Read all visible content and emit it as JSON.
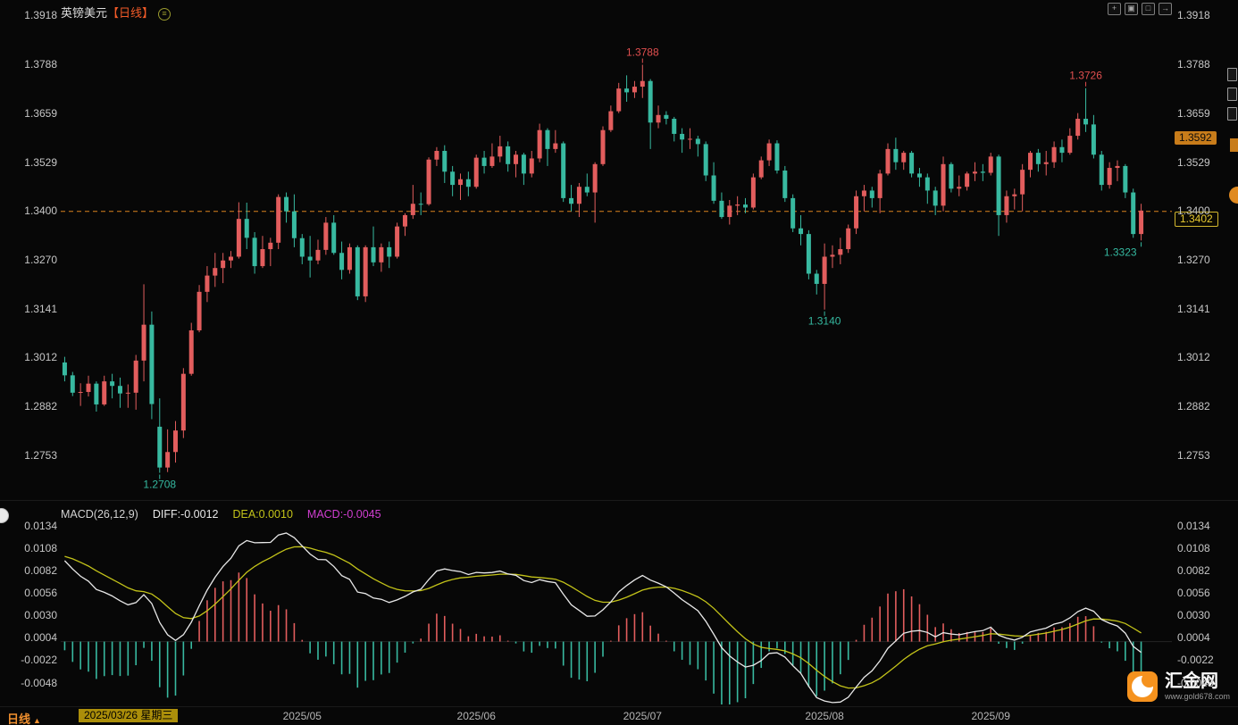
{
  "window": {
    "symbol": "英镑美元",
    "period_tag": "【日线】"
  },
  "icons": {
    "chart_settings": "≡",
    "period_caret": "▲",
    "win_icons": [
      "+",
      "▣",
      "□",
      "→"
    ]
  },
  "price_panel": {
    "ticks": [
      {
        "label": "1.3918",
        "value": 1.3918
      },
      {
        "label": "1.3788",
        "value": 1.3788
      },
      {
        "label": "1.3659",
        "value": 1.3659
      },
      {
        "label": "1.3529",
        "value": 1.3529
      },
      {
        "label": "1.3400",
        "value": 1.34
      },
      {
        "label": "1.3270",
        "value": 1.327
      },
      {
        "label": "1.3141",
        "value": 1.3141
      },
      {
        "label": "1.3012",
        "value": 1.3012
      },
      {
        "label": "1.2882",
        "value": 1.2882
      },
      {
        "label": "1.2753",
        "value": 1.2753
      }
    ],
    "ref_line": {
      "value": 1.34,
      "color": "#d9821e"
    },
    "tags": {
      "upper": {
        "text": "1.3592",
        "value": 1.3592
      },
      "current": {
        "text": "1.3402",
        "value": 1.3402
      }
    },
    "annotations": [
      {
        "text": "1.3788",
        "date": "2025-07-01",
        "value": 1.3788,
        "side": "high"
      },
      {
        "text": "1.3726",
        "date": "2025-09-17",
        "value": 1.3726,
        "side": "high"
      },
      {
        "text": "1.2708",
        "date": "2025-04-07",
        "value": 1.2708,
        "side": "low"
      },
      {
        "text": "1.3140",
        "date": "2025-08-01",
        "value": 1.314,
        "side": "low"
      },
      {
        "text": "1.3323",
        "date": "2025-09-26",
        "value": 1.3323,
        "side": "low",
        "align": "end"
      }
    ]
  },
  "macd_panel": {
    "header": {
      "name": "MACD(26,12,9)",
      "diff": "DIFF:-0.0012",
      "dea": "DEA:0.0010",
      "macd": "MACD:-0.0045"
    },
    "ticks": [
      {
        "label": "0.0134",
        "value": 0.0134
      },
      {
        "label": "0.0108",
        "value": 0.0108
      },
      {
        "label": "0.0082",
        "value": 0.0082
      },
      {
        "label": "0.0056",
        "value": 0.0056
      },
      {
        "label": "0.0030",
        "value": 0.003
      },
      {
        "label": "0.0004",
        "value": 0.0004
      },
      {
        "label": "-0.0022",
        "value": -0.0022
      },
      {
        "label": "-0.0048",
        "value": -0.0048
      }
    ]
  },
  "x_axis": {
    "months": [
      {
        "label": "2025/05",
        "key": "2025-05"
      },
      {
        "label": "2025/06",
        "key": "2025-06"
      },
      {
        "label": "2025/07",
        "key": "2025-07"
      },
      {
        "label": "2025/08",
        "key": "2025-08"
      },
      {
        "label": "2025/09",
        "key": "2025-09"
      }
    ]
  },
  "status_bar": {
    "period": "日线",
    "date": "2025/03/26 星期三"
  },
  "watermark": {
    "title": "汇金网",
    "url": "www.gold678.com"
  },
  "colors": {
    "up": "#e25d5d",
    "down": "#38b9a0",
    "diff_line": "#e8e8e8",
    "dea_line": "#c3c319",
    "annotation_high": "#e14f4f",
    "annotation_low": "#35b9a0",
    "accent": "#f08f2e"
  },
  "chart_data": {
    "type": "candlestick",
    "symbol": "英镑美元",
    "period": "日线",
    "indicator": "MACD(26,12,9)",
    "price_range": [
      1.2753,
      1.3918
    ],
    "macd_range": [
      -0.0048,
      0.0134
    ],
    "last": {
      "close": 1.3402,
      "diff": -0.0012,
      "dea": 0.001,
      "macd": -0.0045
    },
    "macd_seed": {
      "ema12": 1.2952,
      "ema26": 1.2852,
      "dea": 0.01
    },
    "ohlc_columns": [
      "date",
      "open",
      "high",
      "low",
      "close"
    ],
    "candles": [
      [
        "2025-03-20",
        1.3,
        1.3015,
        1.295,
        1.2966
      ],
      [
        "2025-03-21",
        1.2966,
        1.2975,
        1.2911,
        1.292
      ],
      [
        "2025-03-24",
        1.292,
        1.2945,
        1.2885,
        1.2922
      ],
      [
        "2025-03-25",
        1.2922,
        1.2965,
        1.291,
        1.2944
      ],
      [
        "2025-03-26",
        1.2944,
        1.295,
        1.287,
        1.2889
      ],
      [
        "2025-03-27",
        1.2889,
        1.2965,
        1.2885,
        1.295
      ],
      [
        "2025-03-28",
        1.295,
        1.297,
        1.2905,
        1.2938
      ],
      [
        "2025-03-31",
        1.2938,
        1.296,
        1.288,
        1.2918
      ],
      [
        "2025-04-01",
        1.2918,
        1.2942,
        1.288,
        1.292
      ],
      [
        "2025-04-02",
        1.292,
        1.302,
        1.2875,
        1.3005
      ],
      [
        "2025-04-03",
        1.3005,
        1.3207,
        1.295,
        1.31
      ],
      [
        "2025-04-04",
        1.31,
        1.3135,
        1.285,
        1.289
      ],
      [
        "2025-04-07",
        1.283,
        1.2905,
        1.2708,
        1.2722
      ],
      [
        "2025-04-08",
        1.2722,
        1.2823,
        1.271,
        1.2763
      ],
      [
        "2025-04-09",
        1.2763,
        1.2845,
        1.2735,
        1.282
      ],
      [
        "2025-04-10",
        1.282,
        1.2985,
        1.28,
        1.297
      ],
      [
        "2025-04-11",
        1.297,
        1.3105,
        1.2965,
        1.3085
      ],
      [
        "2025-04-14",
        1.3085,
        1.3205,
        1.308,
        1.3187
      ],
      [
        "2025-04-15",
        1.3187,
        1.3255,
        1.316,
        1.323
      ],
      [
        "2025-04-16",
        1.323,
        1.329,
        1.32,
        1.325
      ],
      [
        "2025-04-17",
        1.325,
        1.329,
        1.321,
        1.327
      ],
      [
        "2025-04-18",
        1.327,
        1.3295,
        1.325,
        1.328
      ],
      [
        "2025-04-21",
        1.328,
        1.3424,
        1.3275,
        1.338
      ],
      [
        "2025-04-22",
        1.338,
        1.3423,
        1.33,
        1.333
      ],
      [
        "2025-04-23",
        1.333,
        1.3345,
        1.3235,
        1.3255
      ],
      [
        "2025-04-24",
        1.3255,
        1.3335,
        1.325,
        1.33
      ],
      [
        "2025-04-25",
        1.33,
        1.333,
        1.3255,
        1.3317
      ],
      [
        "2025-04-28",
        1.3317,
        1.3445,
        1.33,
        1.3438
      ],
      [
        "2025-04-29",
        1.3438,
        1.345,
        1.337,
        1.34
      ],
      [
        "2025-04-30",
        1.34,
        1.3445,
        1.3305,
        1.3329
      ],
      [
        "2025-05-01",
        1.3329,
        1.334,
        1.326,
        1.328
      ],
      [
        "2025-05-02",
        1.328,
        1.3335,
        1.3225,
        1.327
      ],
      [
        "2025-05-05",
        1.327,
        1.3325,
        1.326,
        1.3298
      ],
      [
        "2025-05-06",
        1.3298,
        1.3385,
        1.3285,
        1.337
      ],
      [
        "2025-05-07",
        1.337,
        1.339,
        1.3285,
        1.329
      ],
      [
        "2025-05-08",
        1.329,
        1.332,
        1.322,
        1.3245
      ],
      [
        "2025-05-09",
        1.3245,
        1.3315,
        1.3235,
        1.3305
      ],
      [
        "2025-05-12",
        1.3305,
        1.331,
        1.3165,
        1.3175
      ],
      [
        "2025-05-13",
        1.3175,
        1.331,
        1.316,
        1.3305
      ],
      [
        "2025-05-14",
        1.3305,
        1.336,
        1.3255,
        1.3265
      ],
      [
        "2025-05-15",
        1.3265,
        1.3315,
        1.324,
        1.3305
      ],
      [
        "2025-05-16",
        1.3305,
        1.332,
        1.325,
        1.328
      ],
      [
        "2025-05-19",
        1.328,
        1.337,
        1.3275,
        1.336
      ],
      [
        "2025-05-20",
        1.336,
        1.3395,
        1.3335,
        1.339
      ],
      [
        "2025-05-21",
        1.339,
        1.347,
        1.338,
        1.342
      ],
      [
        "2025-05-22",
        1.342,
        1.345,
        1.339,
        1.3419
      ],
      [
        "2025-05-23",
        1.3419,
        1.3543,
        1.3415,
        1.3537
      ],
      [
        "2025-05-26",
        1.3537,
        1.357,
        1.352,
        1.356
      ],
      [
        "2025-05-27",
        1.356,
        1.3575,
        1.3475,
        1.3505
      ],
      [
        "2025-05-28",
        1.3505,
        1.352,
        1.344,
        1.347
      ],
      [
        "2025-05-29",
        1.347,
        1.35,
        1.343,
        1.3485
      ],
      [
        "2025-05-30",
        1.3485,
        1.3505,
        1.344,
        1.3465
      ],
      [
        "2025-06-02",
        1.3465,
        1.355,
        1.346,
        1.3542
      ],
      [
        "2025-06-03",
        1.3542,
        1.356,
        1.35,
        1.352
      ],
      [
        "2025-06-04",
        1.352,
        1.358,
        1.3515,
        1.3545
      ],
      [
        "2025-06-05",
        1.3545,
        1.36,
        1.353,
        1.3572
      ],
      [
        "2025-06-06",
        1.3572,
        1.3585,
        1.3505,
        1.3525
      ],
      [
        "2025-06-09",
        1.3525,
        1.356,
        1.349,
        1.355
      ],
      [
        "2025-06-10",
        1.355,
        1.3555,
        1.347,
        1.35
      ],
      [
        "2025-06-11",
        1.35,
        1.356,
        1.349,
        1.354
      ],
      [
        "2025-06-12",
        1.354,
        1.3632,
        1.353,
        1.3615
      ],
      [
        "2025-06-13",
        1.3615,
        1.362,
        1.352,
        1.3565
      ],
      [
        "2025-06-16",
        1.3565,
        1.3615,
        1.3555,
        1.358
      ],
      [
        "2025-06-17",
        1.358,
        1.3585,
        1.3425,
        1.3435
      ],
      [
        "2025-06-18",
        1.3435,
        1.347,
        1.34,
        1.342
      ],
      [
        "2025-06-19",
        1.342,
        1.3475,
        1.3385,
        1.3465
      ],
      [
        "2025-06-20",
        1.3465,
        1.35,
        1.344,
        1.345
      ],
      [
        "2025-06-23",
        1.345,
        1.353,
        1.337,
        1.3525
      ],
      [
        "2025-06-24",
        1.3525,
        1.3625,
        1.352,
        1.3615
      ],
      [
        "2025-06-25",
        1.3615,
        1.368,
        1.361,
        1.3665
      ],
      [
        "2025-06-26",
        1.3665,
        1.374,
        1.366,
        1.3725
      ],
      [
        "2025-06-27",
        1.3725,
        1.376,
        1.369,
        1.3715
      ],
      [
        "2025-06-30",
        1.3715,
        1.3745,
        1.37,
        1.373
      ],
      [
        "2025-07-01",
        1.373,
        1.3788,
        1.37,
        1.3745
      ],
      [
        "2025-07-02",
        1.3745,
        1.375,
        1.3565,
        1.3635
      ],
      [
        "2025-07-03",
        1.3635,
        1.368,
        1.362,
        1.3655
      ],
      [
        "2025-07-04",
        1.3655,
        1.3665,
        1.363,
        1.3645
      ],
      [
        "2025-07-07",
        1.3645,
        1.365,
        1.3585,
        1.3605
      ],
      [
        "2025-07-08",
        1.3605,
        1.362,
        1.3555,
        1.359
      ],
      [
        "2025-07-09",
        1.359,
        1.362,
        1.3565,
        1.3592
      ],
      [
        "2025-07-10",
        1.3592,
        1.36,
        1.3545,
        1.3578
      ],
      [
        "2025-07-11",
        1.3578,
        1.3585,
        1.348,
        1.3495
      ],
      [
        "2025-07-14",
        1.3495,
        1.353,
        1.342,
        1.3428
      ],
      [
        "2025-07-15",
        1.3428,
        1.345,
        1.338,
        1.3385
      ],
      [
        "2025-07-16",
        1.3385,
        1.343,
        1.3365,
        1.3415
      ],
      [
        "2025-07-17",
        1.3415,
        1.344,
        1.339,
        1.3418
      ],
      [
        "2025-07-18",
        1.3418,
        1.3435,
        1.3395,
        1.341
      ],
      [
        "2025-07-21",
        1.341,
        1.35,
        1.3405,
        1.349
      ],
      [
        "2025-07-22",
        1.349,
        1.3545,
        1.3485,
        1.3535
      ],
      [
        "2025-07-23",
        1.3535,
        1.359,
        1.352,
        1.358
      ],
      [
        "2025-07-24",
        1.358,
        1.3588,
        1.35,
        1.3508
      ],
      [
        "2025-07-25",
        1.3508,
        1.352,
        1.3425,
        1.3435
      ],
      [
        "2025-07-28",
        1.3435,
        1.3445,
        1.3345,
        1.3355
      ],
      [
        "2025-07-29",
        1.3355,
        1.339,
        1.331,
        1.334
      ],
      [
        "2025-07-30",
        1.334,
        1.335,
        1.322,
        1.3235
      ],
      [
        "2025-07-31",
        1.3235,
        1.3245,
        1.318,
        1.3208
      ],
      [
        "2025-08-01",
        1.3208,
        1.3315,
        1.314,
        1.328
      ],
      [
        "2025-08-04",
        1.328,
        1.331,
        1.325,
        1.3285
      ],
      [
        "2025-08-05",
        1.3285,
        1.333,
        1.326,
        1.33
      ],
      [
        "2025-08-06",
        1.33,
        1.3365,
        1.329,
        1.3355
      ],
      [
        "2025-08-07",
        1.3355,
        1.3455,
        1.334,
        1.344
      ],
      [
        "2025-08-08",
        1.344,
        1.347,
        1.34,
        1.3455
      ],
      [
        "2025-08-11",
        1.3455,
        1.3465,
        1.341,
        1.3435
      ],
      [
        "2025-08-12",
        1.3435,
        1.351,
        1.3395,
        1.35
      ],
      [
        "2025-08-13",
        1.35,
        1.358,
        1.3495,
        1.3565
      ],
      [
        "2025-08-14",
        1.3565,
        1.3595,
        1.351,
        1.353
      ],
      [
        "2025-08-15",
        1.353,
        1.356,
        1.351,
        1.3555
      ],
      [
        "2025-08-18",
        1.3555,
        1.356,
        1.349,
        1.35
      ],
      [
        "2025-08-19",
        1.35,
        1.3515,
        1.3465,
        1.349
      ],
      [
        "2025-08-20",
        1.349,
        1.35,
        1.342,
        1.3455
      ],
      [
        "2025-08-21",
        1.3455,
        1.3465,
        1.339,
        1.3415
      ],
      [
        "2025-08-22",
        1.3415,
        1.3545,
        1.34,
        1.3525
      ],
      [
        "2025-08-25",
        1.3525,
        1.353,
        1.345,
        1.346
      ],
      [
        "2025-08-26",
        1.346,
        1.3495,
        1.344,
        1.3465
      ],
      [
        "2025-08-27",
        1.3465,
        1.3505,
        1.3455,
        1.35
      ],
      [
        "2025-08-28",
        1.35,
        1.353,
        1.348,
        1.3505
      ],
      [
        "2025-08-29",
        1.3505,
        1.3525,
        1.348,
        1.3502
      ],
      [
        "2025-09-01",
        1.3502,
        1.3555,
        1.3495,
        1.3545
      ],
      [
        "2025-09-02",
        1.3545,
        1.355,
        1.3335,
        1.339
      ],
      [
        "2025-09-03",
        1.339,
        1.3455,
        1.337,
        1.344
      ],
      [
        "2025-09-04",
        1.344,
        1.346,
        1.3405,
        1.3445
      ],
      [
        "2025-09-05",
        1.3445,
        1.3525,
        1.34,
        1.351
      ],
      [
        "2025-09-08",
        1.351,
        1.356,
        1.349,
        1.3555
      ],
      [
        "2025-09-09",
        1.3555,
        1.3565,
        1.3505,
        1.3525
      ],
      [
        "2025-09-10",
        1.3525,
        1.356,
        1.3495,
        1.353
      ],
      [
        "2025-09-11",
        1.353,
        1.3585,
        1.3515,
        1.357
      ],
      [
        "2025-09-12",
        1.357,
        1.359,
        1.353,
        1.3555
      ],
      [
        "2025-09-15",
        1.3555,
        1.362,
        1.355,
        1.36
      ],
      [
        "2025-09-16",
        1.36,
        1.366,
        1.359,
        1.3645
      ],
      [
        "2025-09-17",
        1.3645,
        1.3726,
        1.361,
        1.363
      ],
      [
        "2025-09-18",
        1.363,
        1.3655,
        1.354,
        1.355
      ],
      [
        "2025-09-19",
        1.355,
        1.356,
        1.3455,
        1.347
      ],
      [
        "2025-09-22",
        1.347,
        1.353,
        1.346,
        1.3515
      ],
      [
        "2025-09-23",
        1.3515,
        1.3535,
        1.348,
        1.352
      ],
      [
        "2025-09-24",
        1.352,
        1.3525,
        1.3435,
        1.345
      ],
      [
        "2025-09-25",
        1.345,
        1.346,
        1.333,
        1.334
      ],
      [
        "2025-09-26",
        1.334,
        1.342,
        1.3323,
        1.3402
      ]
    ]
  }
}
